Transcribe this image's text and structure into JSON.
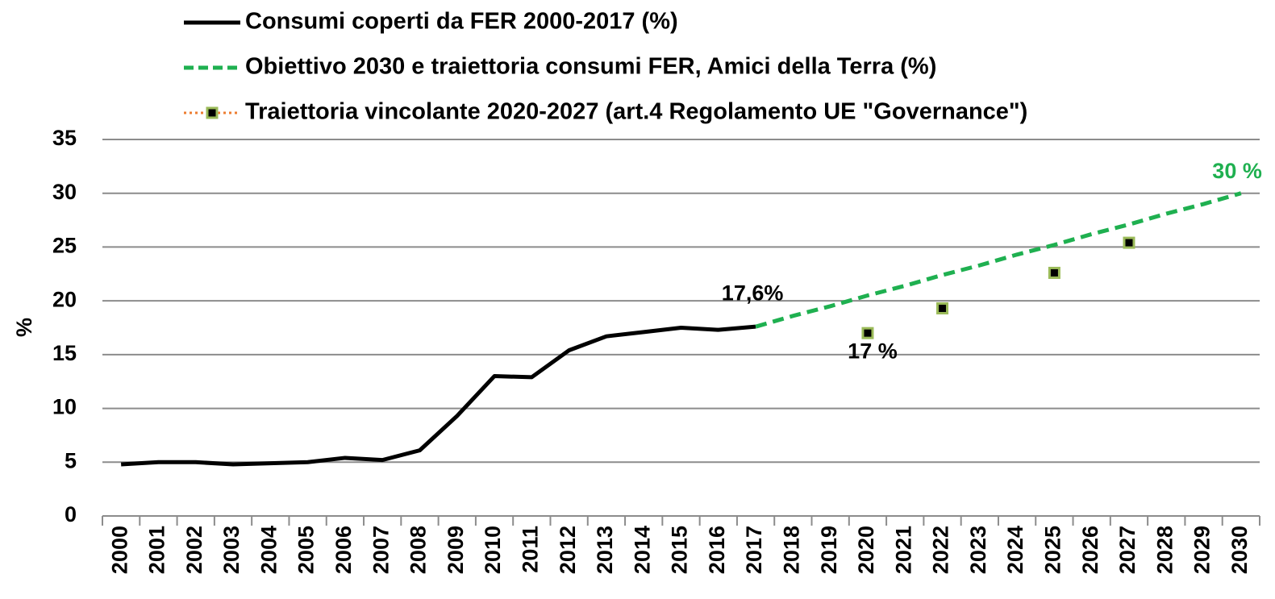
{
  "chart_data": {
    "type": "line",
    "y_label": "%",
    "categories": [
      "2000",
      "2001",
      "2002",
      "2003",
      "2004",
      "2005",
      "2006",
      "2007",
      "2008",
      "2009",
      "2010",
      "2011",
      "2012",
      "2013",
      "2014",
      "2015",
      "2016",
      "2017",
      "2018",
      "2019",
      "2020",
      "2021",
      "2022",
      "2023",
      "2024",
      "2025",
      "2026",
      "2027",
      "2028",
      "2029",
      "2030"
    ],
    "ylim": [
      0,
      35
    ],
    "yticks": [
      0,
      5,
      10,
      15,
      20,
      25,
      30,
      35
    ],
    "grid": true,
    "legend": "top",
    "series": [
      {
        "name": "Consumi  coperti da FER 2000-2017 (%)",
        "color": "#000000",
        "style": "solid",
        "values": [
          4.8,
          5.0,
          5.0,
          4.8,
          4.9,
          5.0,
          5.4,
          5.2,
          6.1,
          9.3,
          13.0,
          12.9,
          15.4,
          16.7,
          17.1,
          17.5,
          17.3,
          17.6,
          null,
          null,
          null,
          null,
          null,
          null,
          null,
          null,
          null,
          null,
          null,
          null,
          null
        ],
        "value_labels": [
          null,
          null,
          null,
          null,
          null,
          null,
          null,
          null,
          null,
          null,
          null,
          null,
          null,
          null,
          null,
          null,
          null,
          "17,6%",
          null,
          null,
          null,
          null,
          null,
          null,
          null,
          null,
          null,
          null,
          null,
          null,
          null
        ]
      },
      {
        "name": "Obiettivo 2030 e traiettoria consumi FER, Amici della Terra (%)",
        "color": "#1fb050",
        "style": "dashed",
        "values": [
          null,
          null,
          null,
          null,
          null,
          null,
          null,
          null,
          null,
          null,
          null,
          null,
          null,
          null,
          null,
          null,
          null,
          17.6,
          18.6,
          19.5,
          20.5,
          21.4,
          22.4,
          23.3,
          24.3,
          25.2,
          26.2,
          27.1,
          28.1,
          29.0,
          30
        ],
        "value_labels": [
          null,
          null,
          null,
          null,
          null,
          null,
          null,
          null,
          null,
          null,
          null,
          null,
          null,
          null,
          null,
          null,
          null,
          null,
          null,
          null,
          null,
          null,
          null,
          null,
          null,
          null,
          null,
          null,
          null,
          null,
          "30 %"
        ]
      },
      {
        "name": "Traiettoria vincolante 2020-2027 (art.4 Regolamento UE \"Governance\")",
        "color": "#ed7d31",
        "style": "markers",
        "marker_color": "#000000",
        "marker_edge_color": "#9bbb59",
        "values": [
          null,
          null,
          null,
          null,
          null,
          null,
          null,
          null,
          null,
          null,
          null,
          null,
          null,
          null,
          null,
          null,
          null,
          null,
          null,
          null,
          17,
          null,
          19.3,
          null,
          null,
          22.6,
          null,
          25.4,
          null,
          null,
          null
        ],
        "value_labels": [
          null,
          null,
          null,
          null,
          null,
          null,
          null,
          null,
          null,
          null,
          null,
          null,
          null,
          null,
          null,
          null,
          null,
          null,
          null,
          null,
          "17 %",
          null,
          null,
          null,
          null,
          null,
          null,
          null,
          null,
          null,
          null
        ]
      }
    ]
  }
}
